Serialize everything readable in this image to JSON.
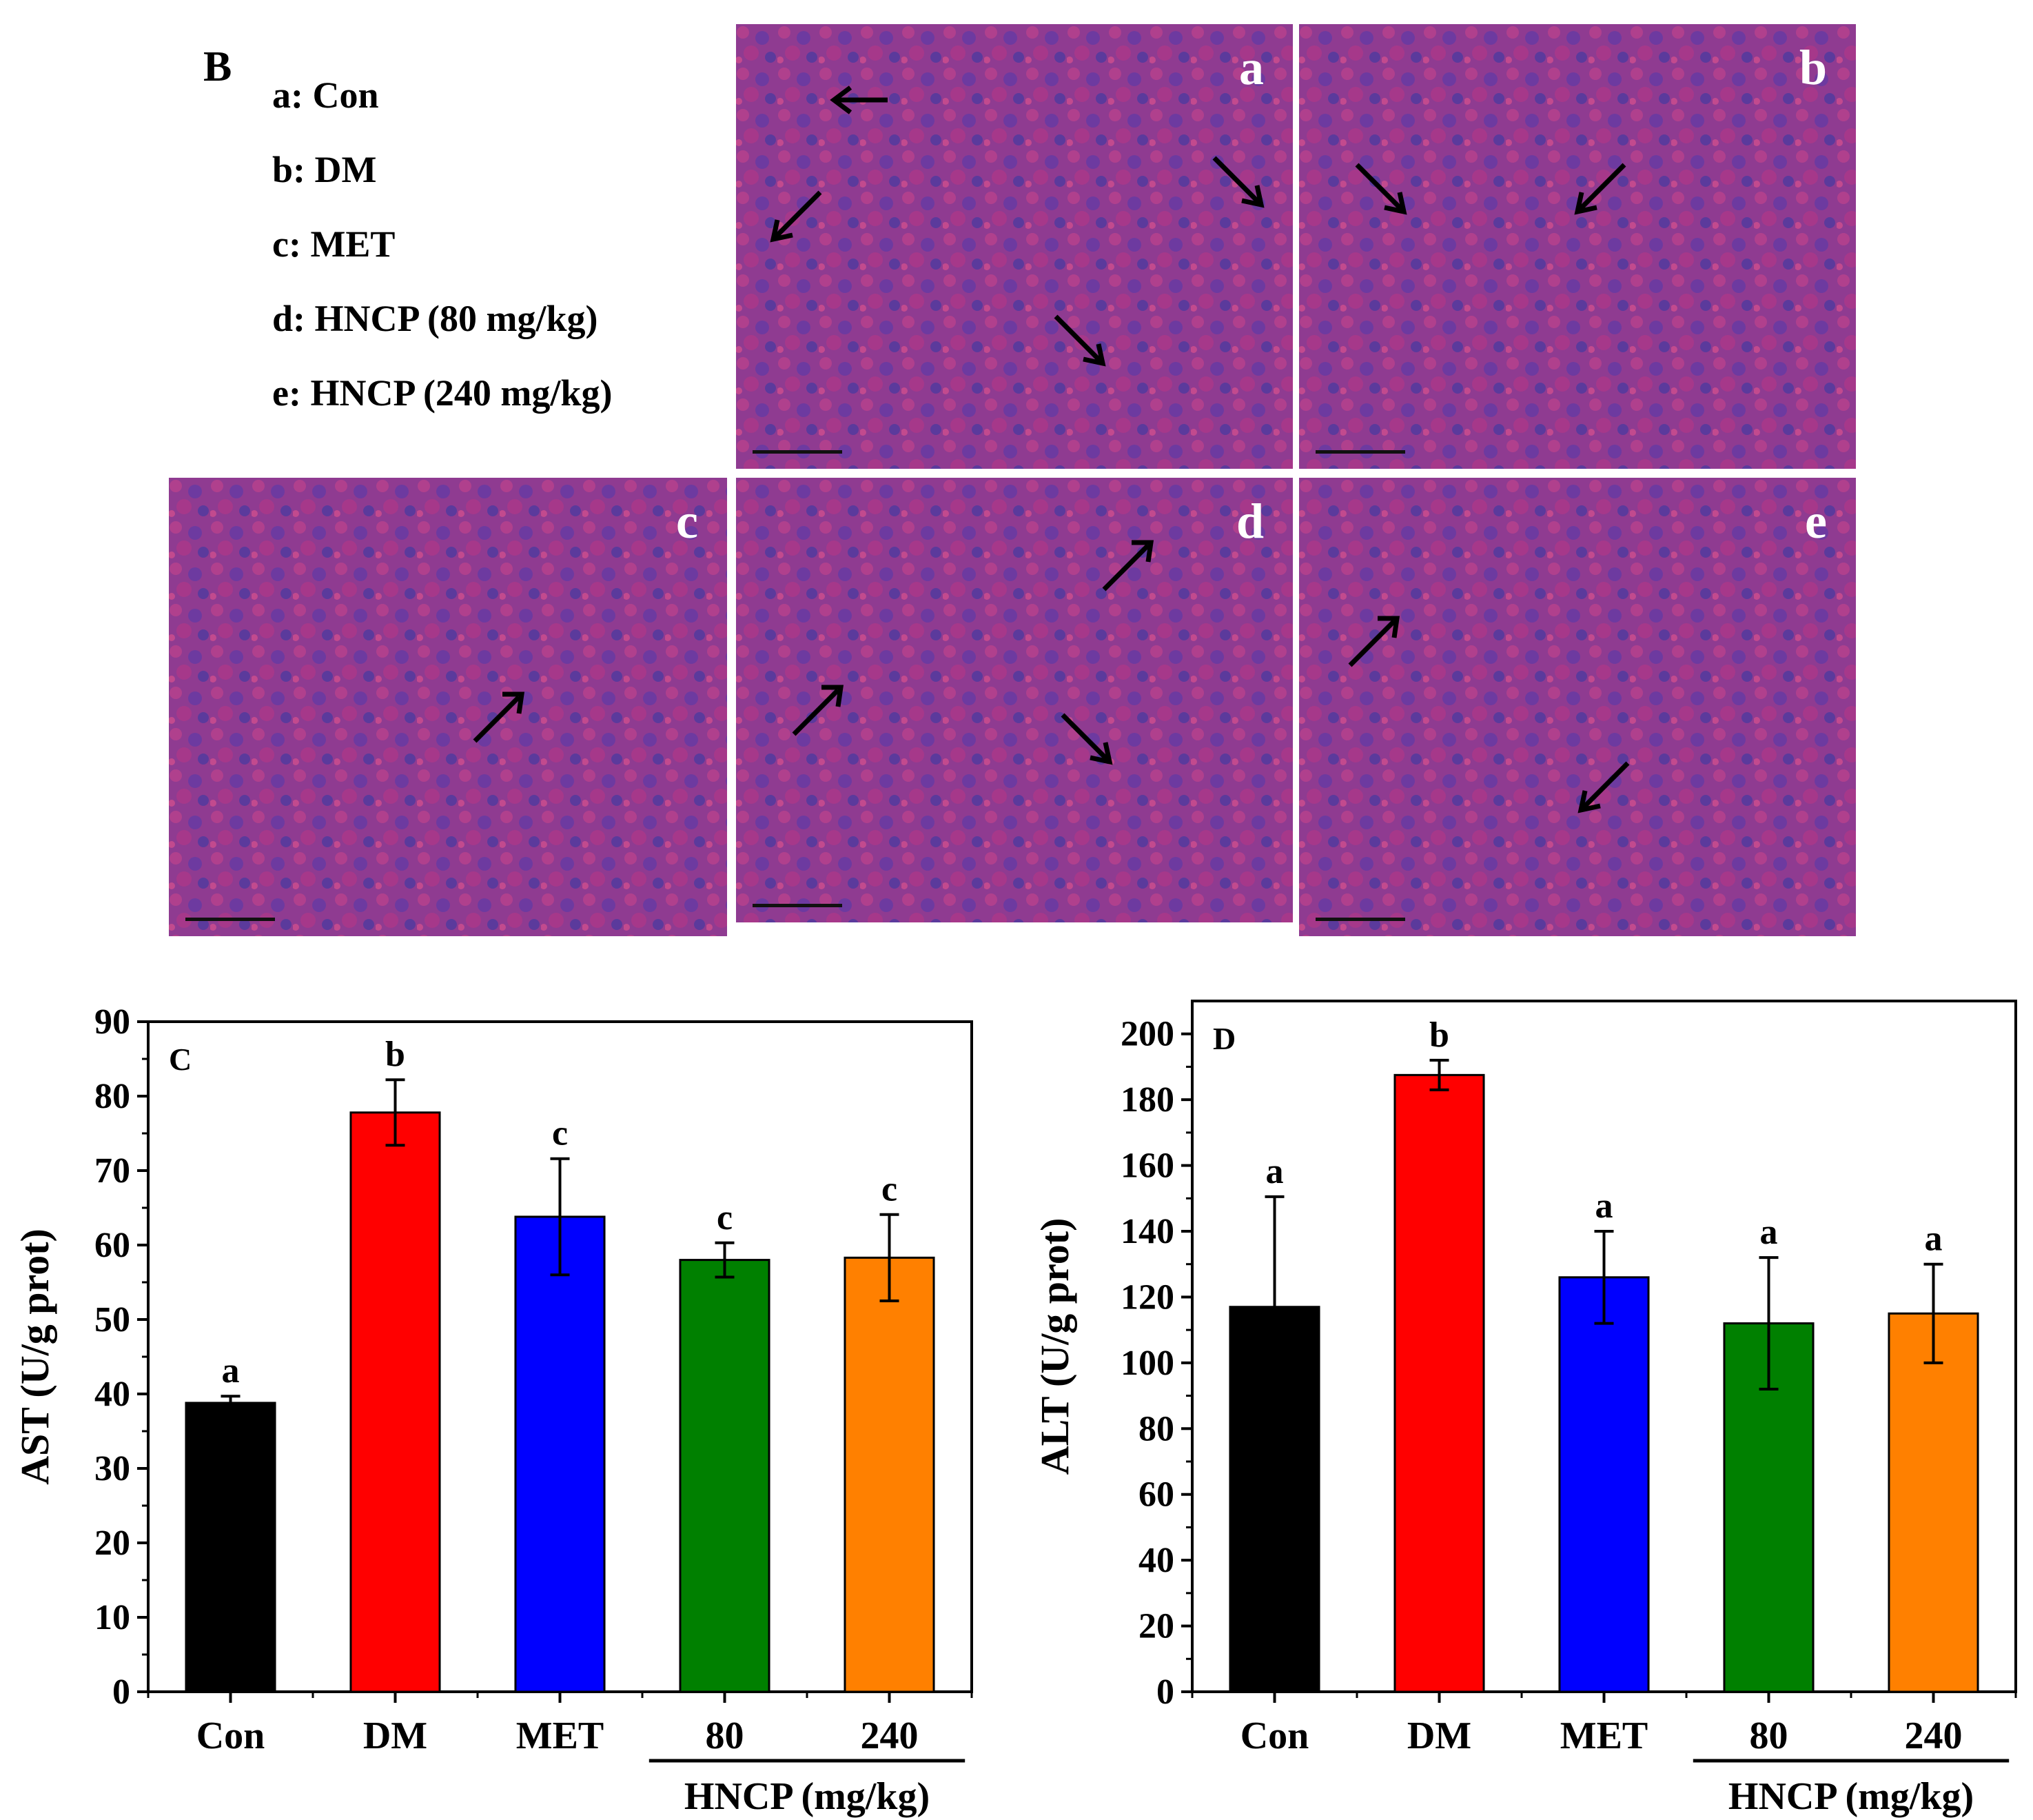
{
  "legend": {
    "panel_letter": "B",
    "items": [
      "a: Con",
      "b: DM",
      "c: MET",
      "d: HNCP (80 mg/kg)",
      "e: HNCP (240 mg/kg)"
    ]
  },
  "micrographs": [
    {
      "label": "a"
    },
    {
      "label": "b"
    },
    {
      "label": "c"
    },
    {
      "label": "d"
    },
    {
      "label": "e"
    }
  ],
  "chart_data": [
    {
      "type": "bar",
      "panel_label": "C",
      "categories": [
        "Con",
        "DM",
        "MET",
        "80",
        "240"
      ],
      "values": [
        38.8,
        77.8,
        63.8,
        58.0,
        58.3
      ],
      "errors": [
        0.9,
        4.4,
        7.8,
        2.3,
        5.8
      ],
      "significance_letters": [
        "a",
        "b",
        "c",
        "c",
        "c"
      ],
      "bar_colors": [
        "#000000",
        "#ff0000",
        "#0000ff",
        "#008000",
        "#ff8000"
      ],
      "ylabel": "AST (U/g prot)",
      "xlabel": "",
      "group_label": "HNCP (mg/kg)",
      "ylim": [
        0,
        90
      ],
      "yticks": [
        0,
        10,
        20,
        30,
        40,
        50,
        60,
        70,
        80,
        90
      ],
      "grid": false
    },
    {
      "type": "bar",
      "panel_label": "D",
      "categories": [
        "Con",
        "DM",
        "MET",
        "80",
        "240"
      ],
      "values": [
        117,
        187.5,
        126,
        112,
        115
      ],
      "errors": [
        33.5,
        4.5,
        14,
        20,
        15
      ],
      "significance_letters": [
        "a",
        "b",
        "a",
        "a",
        "a"
      ],
      "bar_colors": [
        "#000000",
        "#ff0000",
        "#0000ff",
        "#008000",
        "#ff8000"
      ],
      "ylabel": "ALT (U/g prot)",
      "xlabel": "",
      "group_label": "HNCP (mg/kg)",
      "ylim": [
        0,
        210
      ],
      "yticks": [
        0,
        20,
        40,
        60,
        80,
        100,
        120,
        140,
        160,
        180,
        200
      ],
      "grid": false
    }
  ]
}
